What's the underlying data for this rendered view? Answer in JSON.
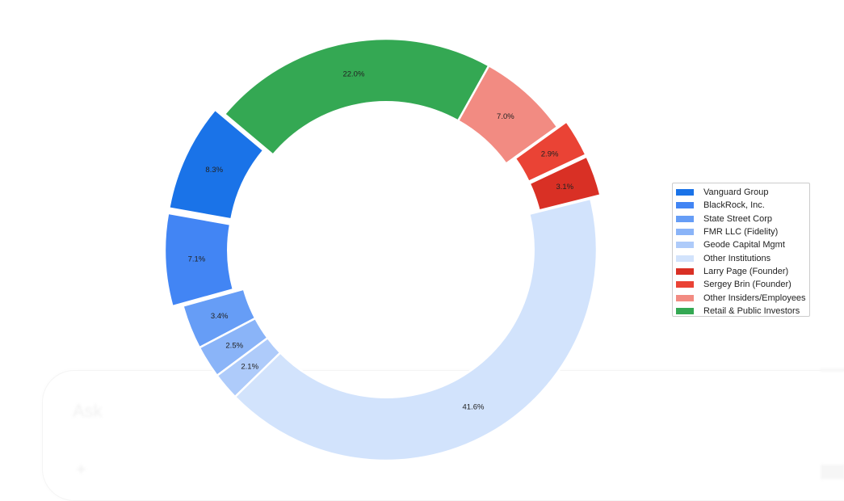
{
  "chart_data": {
    "type": "pie",
    "variant": "donut",
    "title": "",
    "direction": "counter-clockwise",
    "start_angle_deg": 310,
    "hole_ratio": 0.7,
    "legend_position": "right",
    "categories": [
      "Vanguard Group",
      "BlackRock, Inc.",
      "State Street Corp",
      "FMR LLC (Fidelity)",
      "Geode Capital Mgmt",
      "Other Institutions",
      "Larry Page (Founder)",
      "Sergey Brin (Founder)",
      "Other Insiders/Employees",
      "Retail & Public Investors"
    ],
    "values": [
      8.3,
      7.1,
      3.4,
      2.5,
      2.1,
      41.6,
      3.1,
      2.9,
      7.0,
      22.0
    ],
    "labels": [
      "8.3%",
      "7.1%",
      "3.4%",
      "2.5%",
      "2.1%",
      "41.6%",
      "3.1%",
      "2.9%",
      "7.0%",
      "22.0%"
    ],
    "colors": [
      "#1a73e8",
      "#4285f4",
      "#669df6",
      "#8ab4f8",
      "#aecbfa",
      "#d2e3fc",
      "#d93025",
      "#ea4335",
      "#f28b82",
      "#34a853"
    ],
    "exploded": [
      true,
      true,
      false,
      false,
      false,
      false,
      true,
      true,
      false,
      false
    ]
  },
  "legend": {
    "items": [
      {
        "label": "Vanguard Group",
        "color": "#1a73e8"
      },
      {
        "label": "BlackRock, Inc.",
        "color": "#4285f4"
      },
      {
        "label": "State Street Corp",
        "color": "#669df6"
      },
      {
        "label": "FMR LLC (Fidelity)",
        "color": "#8ab4f8"
      },
      {
        "label": "Geode Capital Mgmt",
        "color": "#aecbfa"
      },
      {
        "label": "Other Institutions",
        "color": "#d2e3fc"
      },
      {
        "label": "Larry Page (Founder)",
        "color": "#d93025"
      },
      {
        "label": "Sergey Brin (Founder)",
        "color": "#ea4335"
      },
      {
        "label": "Other Insiders/Employees",
        "color": "#f28b82"
      },
      {
        "label": "Retail & Public Investors",
        "color": "#34a853"
      }
    ]
  },
  "background": {
    "ghost_input_text": "Ask",
    "ghost_plus_icon": "+"
  }
}
